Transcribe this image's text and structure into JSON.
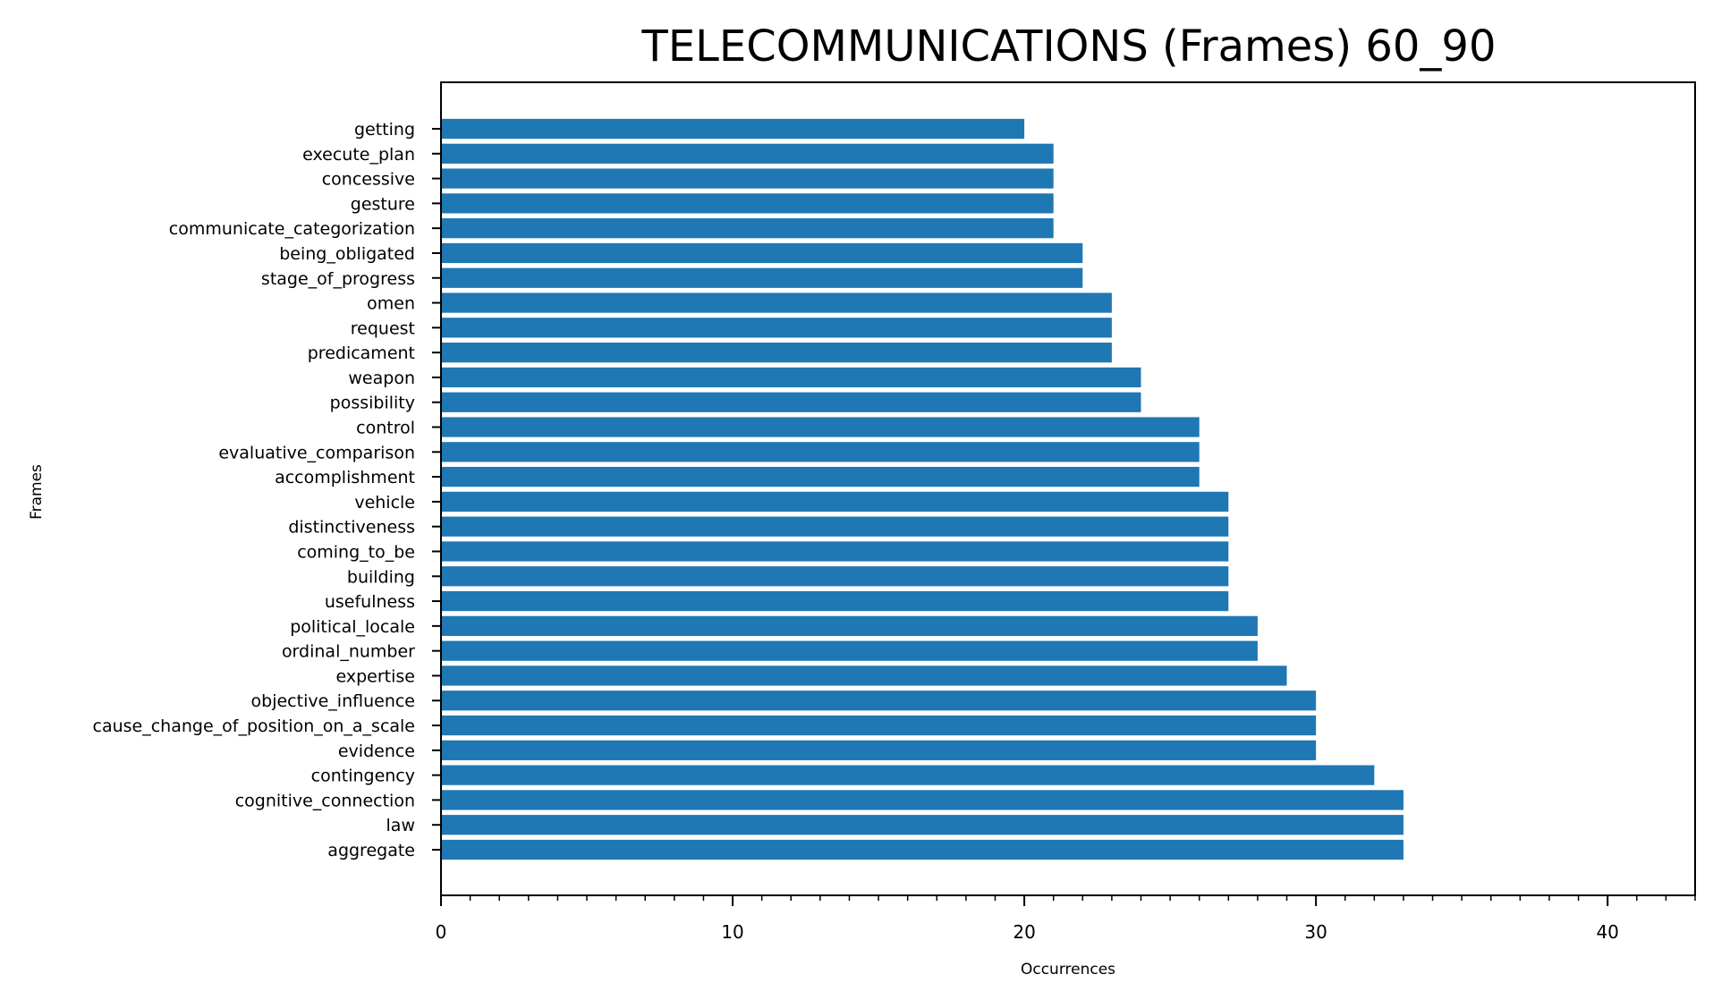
{
  "chart_data": {
    "type": "bar",
    "orientation": "horizontal",
    "title": "TELECOMMUNICATIONS (Frames) 60_90",
    "xlabel": "Occurrences",
    "ylabel": "Frames",
    "xlim": [
      0,
      43
    ],
    "x_ticks": [
      0,
      10,
      20,
      30,
      40
    ],
    "grid": false,
    "bar_color": "#1f77b4",
    "categories": [
      "getting",
      "execute_plan",
      "concessive",
      "gesture",
      "communicate_categorization",
      "being_obligated",
      "stage_of_progress",
      "omen",
      "request",
      "predicament",
      "weapon",
      "possibility",
      "control",
      "evaluative_comparison",
      "accomplishment",
      "vehicle",
      "distinctiveness",
      "coming_to_be",
      "building",
      "usefulness",
      "political_locale",
      "ordinal_number",
      "expertise",
      "objective_influence",
      "cause_change_of_position_on_a_scale",
      "evidence",
      "contingency",
      "cognitive_connection",
      "law",
      "aggregate"
    ],
    "values": [
      20,
      21,
      21,
      21,
      21,
      22,
      22,
      23,
      23,
      23,
      24,
      24,
      26,
      26,
      26,
      27,
      27,
      27,
      27,
      27,
      28,
      28,
      29,
      30,
      30,
      30,
      32,
      33,
      33,
      33
    ]
  }
}
